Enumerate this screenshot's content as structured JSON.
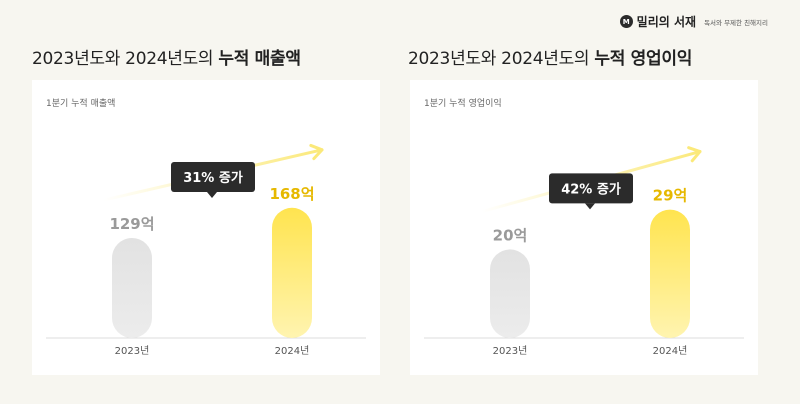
{
  "brand": {
    "name": "밀리의 서재",
    "tagline": "독서와 무제한 친해지리",
    "mark": "M"
  },
  "colors": {
    "background": "#f7f6f0",
    "card": "#ffffff",
    "bar_2023": "#e3e3e3",
    "bar_2024": "#ffe14f",
    "value_2023": "#9a9a9a",
    "value_2024": "#e6b800",
    "tooltip": "#2b2b2b",
    "arrow": "#fbef9a"
  },
  "charts": [
    {
      "title_regular": "2023년도와 2024년도의 ",
      "title_bold": "누적 매출액",
      "card_label": "1분기 누적 매출액"
    },
    {
      "title_regular": "2023년도와 2024년도의 ",
      "title_bold": "누적 영업이익",
      "card_label": "1분기 누적 영업이익"
    }
  ],
  "chart_data": [
    {
      "type": "bar",
      "title": "2023년도와 2024년도의 누적 매출액",
      "subtitle": "1분기 누적 매출액",
      "categories": [
        "2023년",
        "2024년"
      ],
      "values": [
        129,
        168
      ],
      "value_labels": [
        "129억",
        "168억"
      ],
      "unit": "억",
      "annotation": "31% 증가",
      "ylim": [
        0,
        200
      ],
      "grid": false
    },
    {
      "type": "bar",
      "title": "2023년도와 2024년도의 누적 영업이익",
      "subtitle": "1분기 누적 영업이익",
      "categories": [
        "2023년",
        "2024년"
      ],
      "values": [
        20,
        29
      ],
      "value_labels": [
        "20억",
        "29억"
      ],
      "unit": "억",
      "annotation": "42% 증가",
      "ylim": [
        0,
        35
      ],
      "grid": false
    }
  ]
}
